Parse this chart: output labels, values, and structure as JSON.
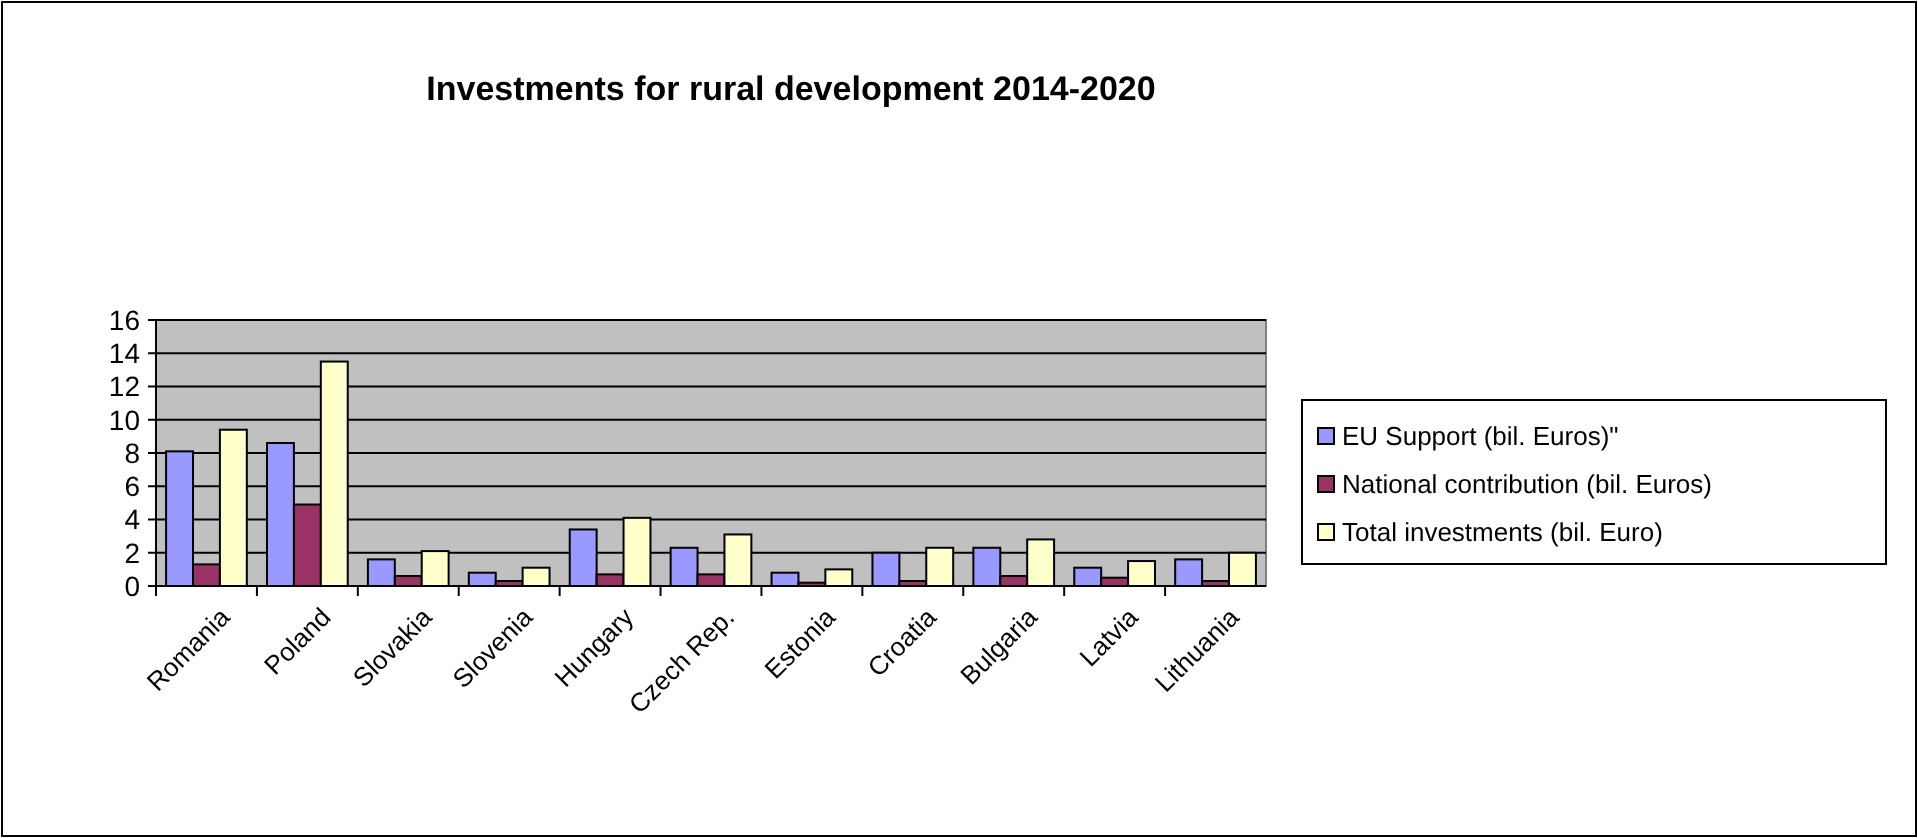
{
  "chart_data": {
    "type": "bar",
    "title": "Investments for rural development 2014-2020",
    "categories": [
      "Romania",
      "Poland",
      "Slovakia",
      "Slovenia",
      "Hungary",
      "Czech Rep.",
      "Estonia",
      "Croatia",
      "Bulgaria",
      "Latvia",
      "Lithuania"
    ],
    "series": [
      {
        "name": "EU Support (bil. Euros)\"",
        "color": "#9999ff",
        "values": [
          8.1,
          8.6,
          1.6,
          0.8,
          3.4,
          2.3,
          0.8,
          2.0,
          2.3,
          1.1,
          1.6
        ]
      },
      {
        "name": "National contribution (bil. Euros)",
        "color": "#993366",
        "values": [
          1.3,
          4.9,
          0.6,
          0.3,
          0.7,
          0.7,
          0.2,
          0.3,
          0.6,
          0.5,
          0.3
        ]
      },
      {
        "name": "Total investments (bil. Euro)",
        "color": "#ffffcc",
        "values": [
          9.4,
          13.5,
          2.1,
          1.1,
          4.1,
          3.1,
          1.0,
          2.3,
          2.8,
          1.5,
          2.0
        ]
      }
    ],
    "ylim": [
      0,
      16
    ],
    "yticks": [
      0,
      2,
      4,
      6,
      8,
      10,
      12,
      14,
      16
    ],
    "grid": "y",
    "legend": "right"
  }
}
